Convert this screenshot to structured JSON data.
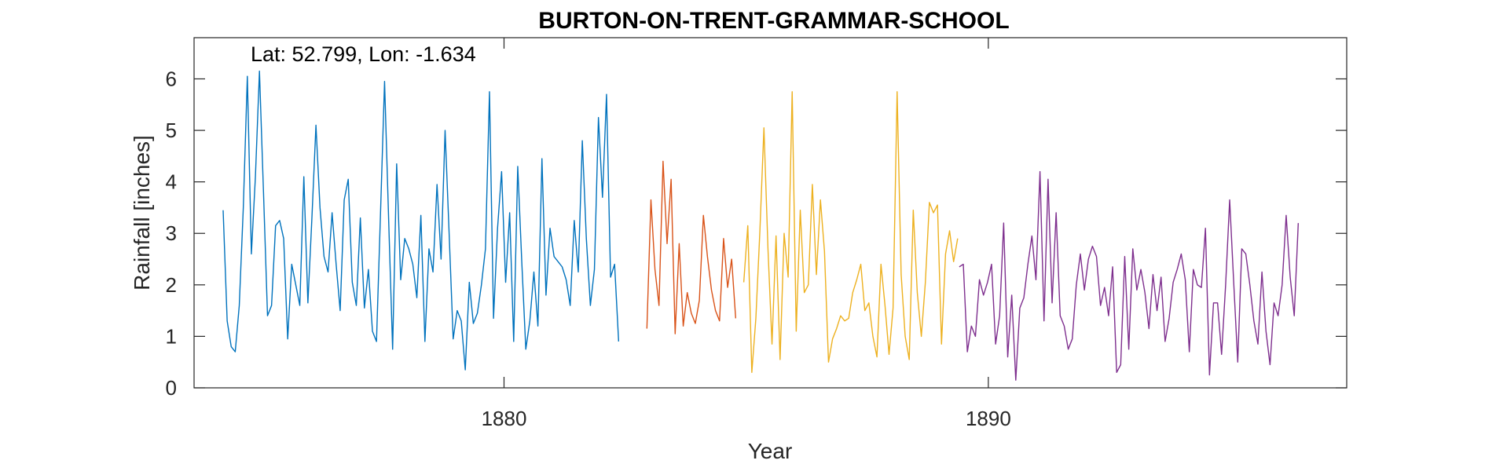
{
  "chart_data": {
    "type": "line",
    "title": "BURTON-ON-TRENT-GRAMMAR-SCHOOL",
    "annotation": "Lat: 52.799, Lon: -1.634",
    "xlabel": "Year",
    "ylabel": "Rainfall [inches]",
    "xlim": [
      1873.6,
      1897.4
    ],
    "ylim": [
      0,
      6.8
    ],
    "xticks": [
      1880,
      1890
    ],
    "yticks": [
      0,
      1,
      2,
      3,
      4,
      5,
      6
    ],
    "grid": false,
    "box": true,
    "series": [
      {
        "color": "#0072BD",
        "start": 1874.2,
        "step": 0.08333,
        "values": [
          3.45,
          1.3,
          0.8,
          0.7,
          1.6,
          3.5,
          6.05,
          2.6,
          4.1,
          6.15,
          3.8,
          1.4,
          1.6,
          3.15,
          3.25,
          2.9,
          0.95,
          2.4,
          2.0,
          1.6,
          4.1,
          1.65,
          3.3,
          5.1,
          3.5,
          2.55,
          2.25,
          3.4,
          2.4,
          1.5,
          3.65,
          4.05,
          2.05,
          1.6,
          3.3,
          1.55,
          2.3,
          1.1,
          0.9,
          3.4,
          5.95,
          3.3,
          0.75,
          4.35,
          2.1,
          2.9,
          2.7,
          2.4,
          1.75,
          3.35,
          0.9,
          2.7,
          2.25,
          3.95,
          2.5,
          5.0,
          3.0,
          0.95,
          1.5,
          1.3,
          0.35,
          2.05,
          1.25,
          1.45,
          2.0,
          2.7,
          5.75,
          1.35,
          3.1,
          4.2,
          2.05,
          3.4,
          0.9,
          4.3,
          2.45,
          0.75,
          1.3,
          2.25,
          1.2,
          4.45,
          1.8,
          3.1,
          2.55,
          2.45,
          2.35,
          2.1,
          1.6,
          3.25,
          2.25,
          4.8,
          2.9,
          1.6,
          2.3,
          5.25,
          3.7,
          5.7,
          2.15,
          2.4,
          0.9
        ]
      },
      {
        "color": "#D95319",
        "start": 1882.95,
        "step": 0.08333,
        "values": [
          1.15,
          3.65,
          2.3,
          1.6,
          4.4,
          2.8,
          4.05,
          1.05,
          2.8,
          1.2,
          1.85,
          1.45,
          1.25,
          1.7,
          3.35,
          2.55,
          1.9,
          1.5,
          1.3,
          2.9,
          1.95,
          2.5,
          1.35
        ]
      },
      {
        "color": "#EDB120",
        "start": 1884.95,
        "step": 0.08333,
        "values": [
          2.05,
          3.15,
          0.3,
          1.35,
          3.05,
          5.05,
          2.7,
          0.85,
          2.95,
          0.55,
          3.0,
          2.15,
          5.75,
          1.1,
          3.45,
          1.85,
          2.0,
          3.95,
          2.2,
          3.65,
          2.65,
          0.5,
          0.95,
          1.15,
          1.4,
          1.3,
          1.35,
          1.85,
          2.1,
          2.4,
          1.5,
          1.65,
          1.0,
          0.6,
          2.4,
          1.6,
          0.65,
          1.55,
          5.75,
          2.2,
          1.0,
          0.55,
          3.45,
          1.85,
          1.0,
          2.05,
          3.6,
          3.4,
          3.55,
          0.85,
          2.6,
          3.05,
          2.45,
          2.9
        ]
      },
      {
        "color": "#7E2F8E",
        "start": 1889.4,
        "step": 0.08333,
        "values": [
          2.35,
          2.4,
          0.7,
          1.2,
          1.0,
          2.1,
          1.8,
          2.05,
          2.4,
          0.85,
          1.4,
          3.2,
          0.6,
          1.8,
          0.15,
          1.55,
          1.75,
          2.4,
          2.95,
          2.1,
          4.2,
          1.3,
          4.05,
          1.65,
          3.4,
          1.4,
          1.2,
          0.75,
          0.95,
          2.0,
          2.6,
          1.9,
          2.5,
          2.75,
          2.55,
          1.6,
          1.95,
          1.4,
          2.35,
          0.3,
          0.45,
          2.55,
          0.75,
          2.7,
          1.9,
          2.3,
          1.85,
          1.15,
          2.2,
          1.5,
          2.15,
          0.9,
          1.35,
          2.05,
          2.3,
          2.6,
          2.1,
          0.7,
          2.3,
          2.0,
          1.95,
          3.1,
          0.25,
          1.65,
          1.65,
          0.65,
          2.0,
          3.65,
          2.05,
          0.5,
          2.7,
          2.6,
          2.0,
          1.3,
          0.85,
          2.25,
          1.1,
          0.45,
          1.65,
          1.4,
          2.0,
          3.35,
          2.15,
          1.4,
          3.2
        ]
      }
    ]
  }
}
